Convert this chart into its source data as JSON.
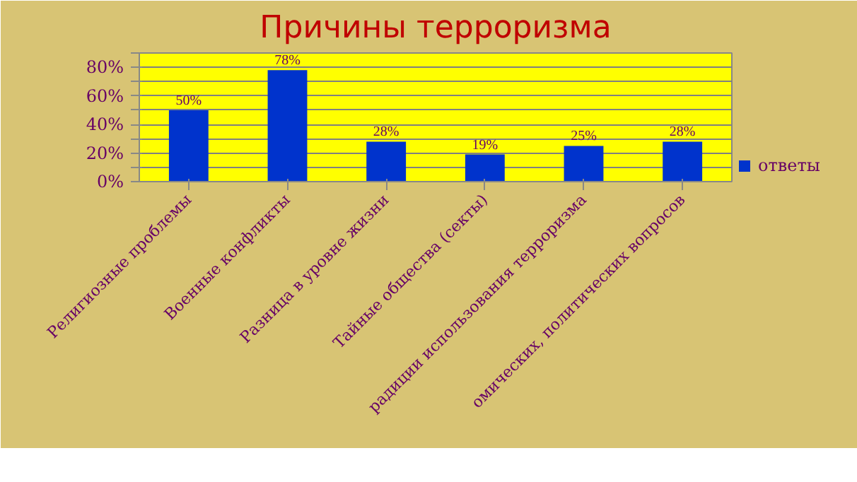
{
  "chart_data": {
    "type": "bar",
    "title": "Причины терроризма",
    "categories": [
      "Религиозные проблемы",
      "Военные конфликты",
      "Разница в уровне жизни",
      "Тайные общества (секты)",
      "радиции использования терроризма",
      "омических, политических вопросов"
    ],
    "series": [
      {
        "name": "ответы",
        "color": "#0033cc",
        "values": [
          50,
          78,
          28,
          19,
          25,
          28
        ],
        "value_labels": [
          "50%",
          "78%",
          "28%",
          "19%",
          "25%",
          "28%"
        ]
      }
    ],
    "ylim": [
      0,
      90
    ],
    "yticks": [
      {
        "value": 0,
        "label": "0%"
      },
      {
        "value": 10,
        "label": null
      },
      {
        "value": 20,
        "label": "20%"
      },
      {
        "value": 30,
        "label": null
      },
      {
        "value": 40,
        "label": "40%"
      },
      {
        "value": 50,
        "label": null
      },
      {
        "value": 60,
        "label": "60%"
      },
      {
        "value": 70,
        "label": null
      },
      {
        "value": 80,
        "label": "80%"
      },
      {
        "value": 90,
        "label": null
      }
    ],
    "grid": "y",
    "legend": "right"
  }
}
